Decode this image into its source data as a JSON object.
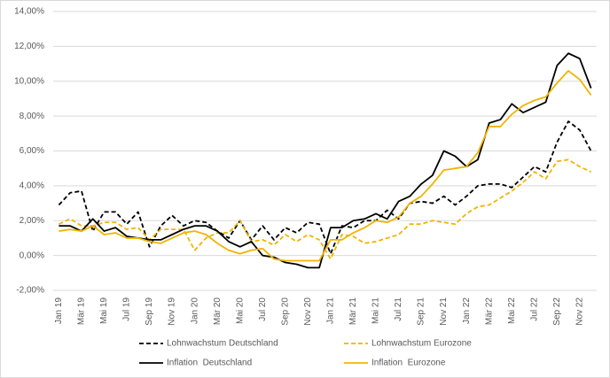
{
  "chart_data": {
    "type": "line",
    "categories": [
      "Jan 19",
      null,
      "Mär 19",
      null,
      "Mai 19",
      null,
      "Jul 19",
      null,
      "Sep 19",
      null,
      "Nov 19",
      null,
      "Jan 20",
      null,
      "Mär 20",
      null,
      "Mai 20",
      null,
      "Jul 20",
      null,
      "Sep 20",
      null,
      "Nov 20",
      null,
      "Jan 21",
      null,
      "Mär 21",
      null,
      "Mai 21",
      null,
      "Jul 21",
      null,
      "Sep 21",
      null,
      "Nov 21",
      null,
      "Jan 22",
      null,
      "Mär 22",
      null,
      "Mai 22",
      null,
      "Jul 22",
      null,
      "Sep 22",
      null,
      "Nov 22",
      null
    ],
    "series": [
      {
        "name": "Lohnwachstum Deutschland",
        "color": "#000000",
        "dashed": true,
        "values": [
          2.9,
          3.6,
          3.7,
          1.4,
          2.5,
          2.5,
          1.8,
          2.5,
          0.5,
          1.7,
          2.3,
          1.7,
          2.0,
          1.9,
          1.4,
          1.0,
          2.0,
          0.9,
          1.7,
          0.9,
          1.6,
          1.3,
          1.9,
          1.8,
          0.1,
          1.7,
          1.6,
          2.0,
          2.0,
          2.6,
          2.1,
          3.0,
          3.1,
          3.0,
          3.4,
          2.9,
          3.4,
          4.0,
          4.1,
          4.1,
          3.9,
          4.5,
          5.1,
          4.8,
          6.5,
          7.7,
          7.2,
          6.0
        ]
      },
      {
        "name": "Lohnwachstum Eurozone",
        "color": "#f0b400",
        "dashed": true,
        "values": [
          1.8,
          2.1,
          1.7,
          1.7,
          1.9,
          1.9,
          1.5,
          1.6,
          0.9,
          1.5,
          1.5,
          1.5,
          0.3,
          1.0,
          1.3,
          1.3,
          2.0,
          0.8,
          0.9,
          0.6,
          1.2,
          0.8,
          1.2,
          0.9,
          -0.2,
          1.2,
          1.1,
          0.7,
          0.8,
          1.0,
          1.2,
          1.8,
          1.8,
          2.0,
          1.9,
          1.8,
          2.4,
          2.8,
          2.9,
          3.3,
          3.7,
          4.2,
          4.8,
          4.4,
          5.4,
          5.5,
          5.1,
          4.8
        ]
      },
      {
        "name": "Inflation  Deutschland",
        "color": "#000000",
        "dashed": false,
        "values": [
          1.7,
          1.7,
          1.4,
          2.1,
          1.4,
          1.6,
          1.1,
          1.0,
          0.9,
          0.9,
          1.2,
          1.5,
          1.7,
          1.7,
          1.4,
          0.8,
          0.5,
          0.8,
          0.0,
          -0.1,
          -0.4,
          -0.5,
          -0.7,
          -0.7,
          1.6,
          1.6,
          2.0,
          2.1,
          2.4,
          2.1,
          3.1,
          3.4,
          4.1,
          4.6,
          6.0,
          5.7,
          5.1,
          5.5,
          7.6,
          7.8,
          8.7,
          8.2,
          8.5,
          8.8,
          10.9,
          11.6,
          11.3,
          9.6
        ]
      },
      {
        "name": "Inflation  Eurozone",
        "color": "#f0b400",
        "dashed": false,
        "values": [
          1.4,
          1.5,
          1.4,
          1.7,
          1.2,
          1.3,
          1.0,
          1.0,
          0.8,
          0.7,
          1.0,
          1.3,
          1.4,
          1.2,
          0.7,
          0.3,
          0.1,
          0.3,
          0.4,
          -0.2,
          -0.3,
          -0.3,
          -0.3,
          -0.3,
          0.9,
          0.9,
          1.3,
          1.6,
          2.0,
          1.9,
          2.2,
          3.0,
          3.4,
          4.1,
          4.9,
          5.0,
          5.1,
          5.9,
          7.4,
          7.4,
          8.1,
          8.6,
          8.9,
          9.1,
          9.9,
          10.6,
          10.1,
          9.2
        ]
      }
    ],
    "ylim": [
      -2,
      14
    ],
    "yticks": [
      {
        "value": -2,
        "label": "-2,00%"
      },
      {
        "value": 0,
        "label": "0,00%"
      },
      {
        "value": 2,
        "label": "2,00%"
      },
      {
        "value": 4,
        "label": "4,00%"
      },
      {
        "value": 6,
        "label": "6,00%"
      },
      {
        "value": 8,
        "label": "8,00%"
      },
      {
        "value": 10,
        "label": "10,00%"
      },
      {
        "value": 12,
        "label": "12,00%"
      },
      {
        "value": 14,
        "label": "14,00%"
      }
    ],
    "grid": true,
    "legend": "bottom"
  }
}
